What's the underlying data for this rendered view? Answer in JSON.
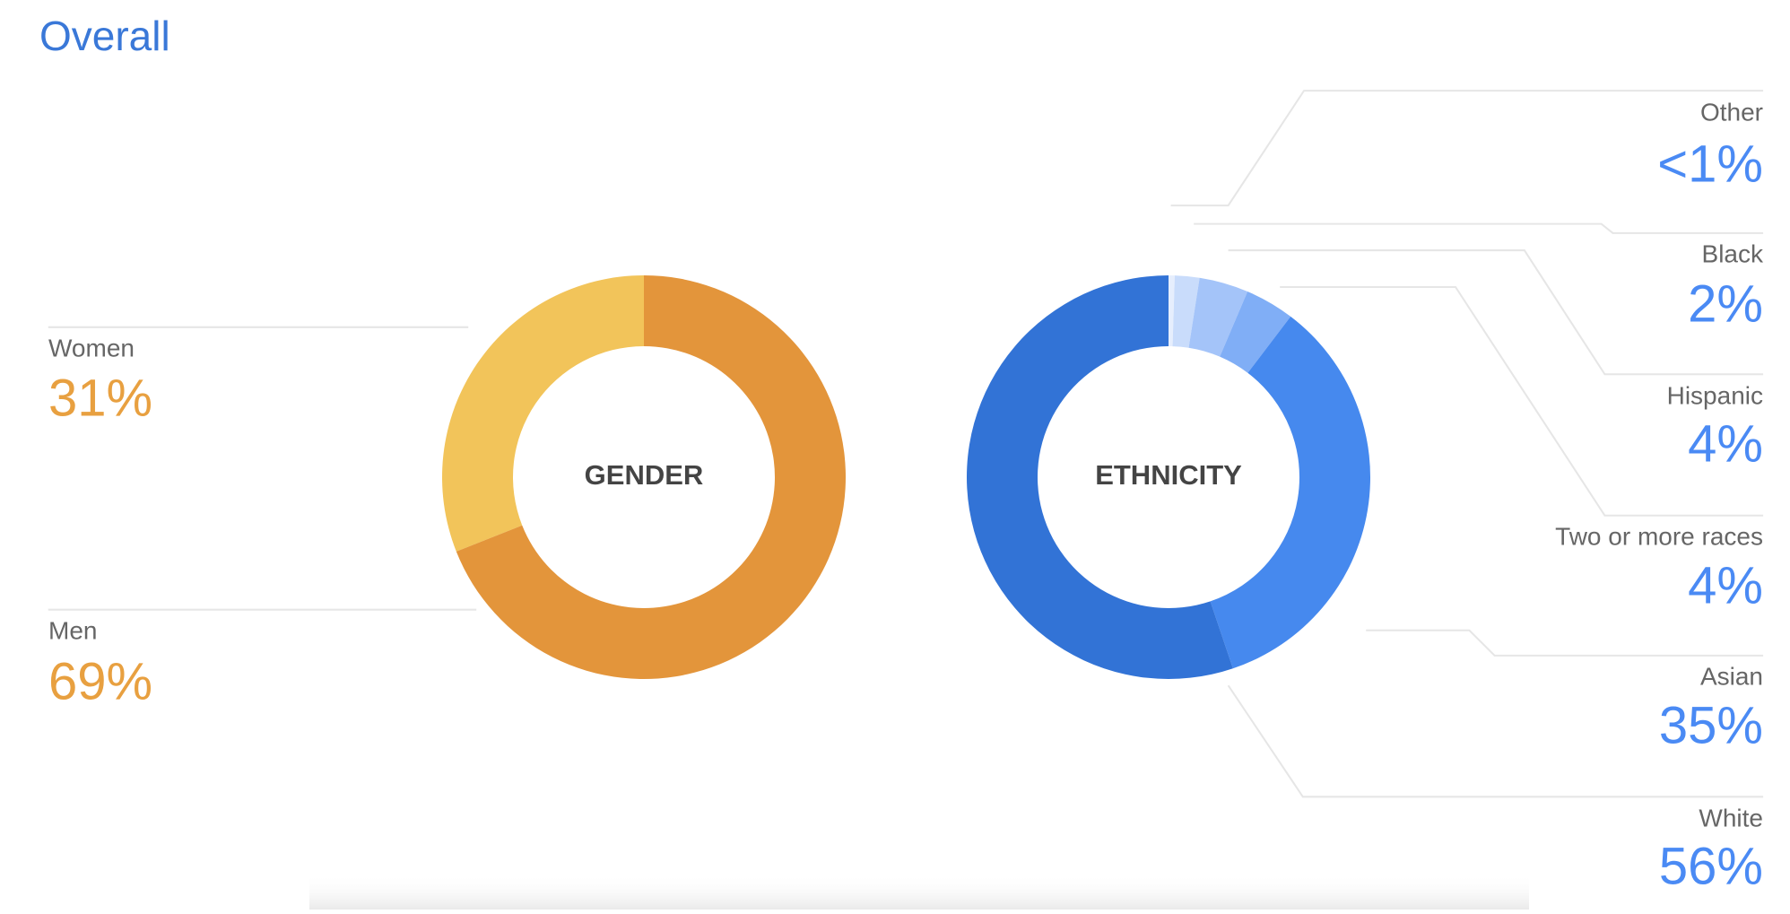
{
  "title": "Overall",
  "chart_data": [
    {
      "type": "pie",
      "title": "GENDER",
      "donut": true,
      "direction": "counterclockwise",
      "categories": [
        "Women",
        "Men"
      ],
      "values": [
        31,
        69
      ],
      "value_labels": [
        "31%",
        "69%"
      ],
      "colors": [
        "#f2c45a",
        "#e3953b"
      ],
      "label_color": "#e8a040"
    },
    {
      "type": "pie",
      "title": "ETHNICITY",
      "donut": true,
      "direction": "clockwise",
      "categories": [
        "Other",
        "Black",
        "Hispanic",
        "Two or more races",
        "Asian",
        "White"
      ],
      "values": [
        0.5,
        2,
        4,
        4,
        35,
        56
      ],
      "value_labels": [
        "<1%",
        "2%",
        "4%",
        "4%",
        "35%",
        "56%"
      ],
      "colors": [
        "#e6eefd",
        "#c9dcfb",
        "#a4c4f9",
        "#80aef6",
        "#4689ee",
        "#3273d6"
      ],
      "label_color": "#4a8af4"
    }
  ]
}
